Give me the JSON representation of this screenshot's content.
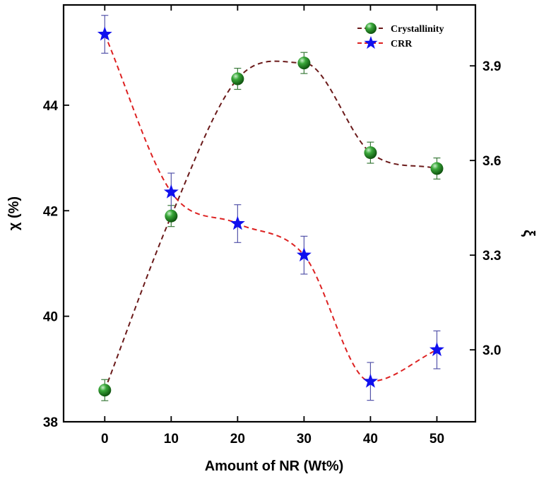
{
  "chart_data": {
    "type": "line",
    "xlabel": "Amount of NR (Wt%)",
    "ylabel_left": "χ (%)",
    "ylabel_right": "ξ",
    "x_ticks": [
      0,
      10,
      20,
      30,
      40,
      50
    ],
    "y_left_ticks": [
      38,
      40,
      42,
      44
    ],
    "y_right_ticks": [
      3.0,
      3.3,
      3.6,
      3.9
    ],
    "y_right_tick_labels": [
      "3.0",
      "3.3",
      "3.6",
      "3.9"
    ],
    "xlim": [
      -6.2,
      55.8
    ],
    "ylim_left": [
      38,
      45.9
    ],
    "ylim_right": [
      2.772,
      4.093
    ],
    "legend_position": "top-right",
    "grid": false,
    "series": [
      {
        "name": "Crystallinity",
        "axis": "left",
        "marker": "sphere",
        "color": "#228B22",
        "line_color": "#6B1A1A",
        "error_color": "#3a7a3a",
        "x": [
          0,
          10,
          20,
          30,
          40,
          50
        ],
        "y": [
          38.6,
          41.9,
          44.5,
          44.8,
          43.1,
          42.8
        ],
        "error": [
          0.2,
          0.2,
          0.2,
          0.2,
          0.2,
          0.2
        ]
      },
      {
        "name": "CRR",
        "axis": "right",
        "marker": "star",
        "color": "#1010EE",
        "line_color": "#DD2222",
        "error_color": "#5555aa",
        "x": [
          0,
          10,
          20,
          30,
          40,
          50
        ],
        "y": [
          4.0,
          3.5,
          3.4,
          3.3,
          2.9,
          3.0
        ],
        "error": [
          0.06,
          0.06,
          0.06,
          0.06,
          0.06,
          0.06
        ]
      }
    ]
  }
}
